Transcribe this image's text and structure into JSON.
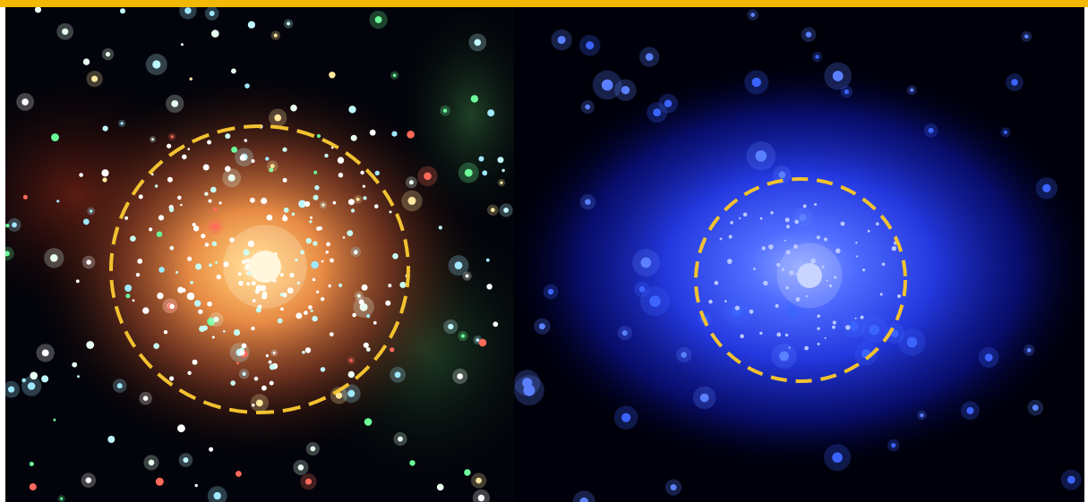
{
  "image": {
    "panels": [
      {
        "id": "left",
        "description_colors": {
          "background": "#02030a",
          "core": "#ffb35a",
          "halo": "#b5562a"
        }
      },
      {
        "id": "right",
        "description_colors": {
          "background": "#00000a",
          "core": "#5a7dff",
          "halo": "#1f34d6"
        }
      }
    ],
    "accent_colors": {
      "top_bar": "#f3b800",
      "circle": "#f2c230"
    }
  }
}
